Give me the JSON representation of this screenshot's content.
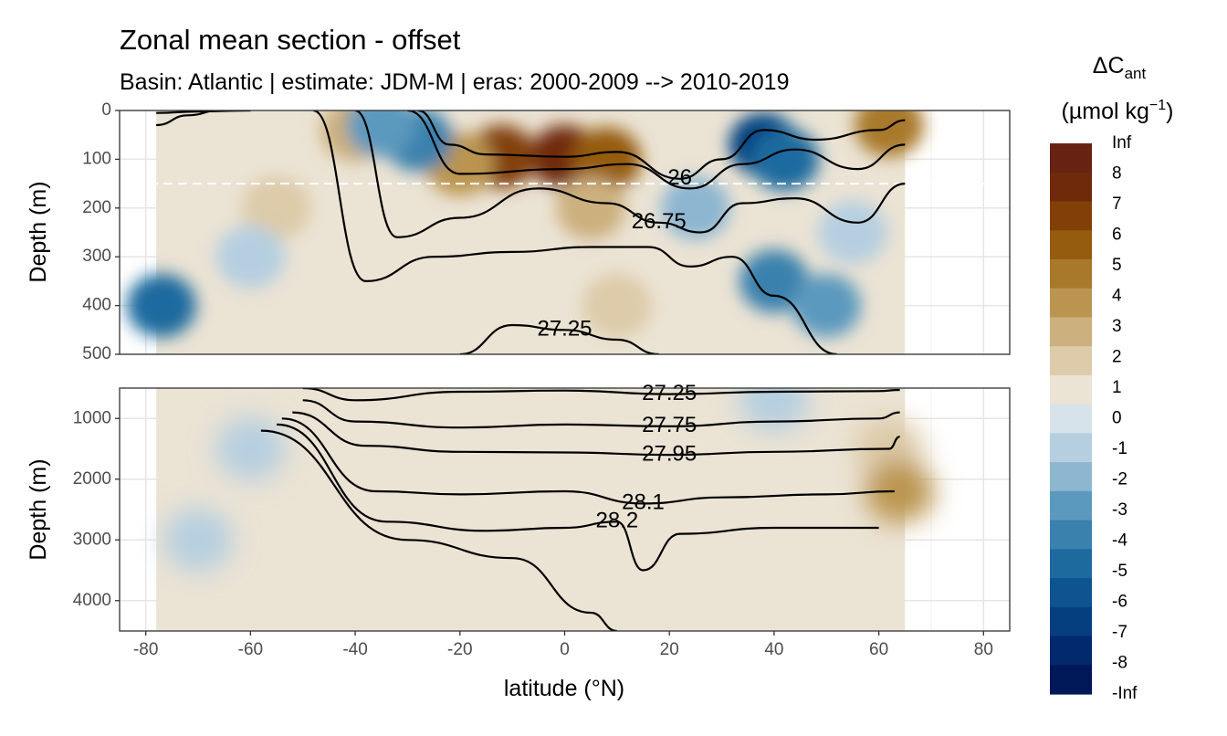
{
  "chart_data": {
    "type": "heatmap",
    "title": "Zonal mean section - offset",
    "subtitle": "Basin: Atlantic | estimate: JDM-M | eras: 2000-2009 --> 2010-2019",
    "xlabel": "latitude (°N)",
    "x_ticks": [
      "-80",
      "-60",
      "-40",
      "-20",
      "0",
      "20",
      "40",
      "60",
      "80"
    ],
    "x_range": [
      -85,
      85
    ],
    "data_lat_range": [
      -78,
      65
    ],
    "grid": true,
    "facets": [
      {
        "ylabel": "Depth (m)",
        "y_range": [
          0,
          500
        ],
        "y_ticks": [
          "0",
          "100",
          "200",
          "300",
          "400",
          "500"
        ],
        "reference_line_depth": 150,
        "blobs": [
          {
            "lat": 0,
            "depth": 95,
            "value": 8
          },
          {
            "lat": -12,
            "depth": 95,
            "value": 7
          },
          {
            "lat": 8,
            "depth": 100,
            "value": 6
          },
          {
            "lat": -20,
            "depth": 110,
            "value": 4
          },
          {
            "lat": 5,
            "depth": 200,
            "value": 3
          },
          {
            "lat": -40,
            "depth": 40,
            "value": 3
          },
          {
            "lat": 62,
            "depth": 30,
            "value": 5
          },
          {
            "lat": -28,
            "depth": 60,
            "value": -4
          },
          {
            "lat": -35,
            "depth": 30,
            "value": -3
          },
          {
            "lat": 38,
            "depth": 70,
            "value": -7
          },
          {
            "lat": 42,
            "depth": 100,
            "value": -5
          },
          {
            "lat": 40,
            "depth": 350,
            "value": -4
          },
          {
            "lat": 50,
            "depth": 400,
            "value": -3
          },
          {
            "lat": -77,
            "depth": 400,
            "value": -5
          },
          {
            "lat": 25,
            "depth": 200,
            "value": -2
          },
          {
            "lat": -55,
            "depth": 200,
            "value": 2
          },
          {
            "lat": 10,
            "depth": 400,
            "value": 2
          },
          {
            "lat": -60,
            "depth": 300,
            "value": -1
          },
          {
            "lat": 55,
            "depth": 250,
            "value": -1
          }
        ],
        "contours": [
          {
            "label": "",
            "depth_at": [
              [
                -78,
                5
              ],
              [
                -70,
                2
              ],
              [
                -60,
                0
              ]
            ]
          },
          {
            "label": "",
            "depth_at": [
              [
                -78,
                30
              ],
              [
                -72,
                10
              ],
              [
                -66,
                0
              ]
            ]
          },
          {
            "label": "26",
            "depth_at": [
              [
                -28,
                0
              ],
              [
                -22,
                70
              ],
              [
                -15,
                90
              ],
              [
                0,
                95
              ],
              [
                10,
                85
              ],
              [
                22,
                140
              ],
              [
                30,
                100
              ],
              [
                38,
                40
              ],
              [
                48,
                60
              ],
              [
                60,
                40
              ],
              [
                65,
                20
              ]
            ]
          },
          {
            "label": "",
            "depth_at": [
              [
                -30,
                0
              ],
              [
                -20,
                130
              ],
              [
                0,
                120
              ],
              [
                12,
                110
              ],
              [
                24,
                160
              ],
              [
                34,
                110
              ],
              [
                44,
                80
              ],
              [
                56,
                120
              ],
              [
                65,
                70
              ]
            ]
          },
          {
            "label": "26.75",
            "depth_at": [
              [
                -40,
                0
              ],
              [
                -32,
                260
              ],
              [
                -20,
                220
              ],
              [
                -5,
                160
              ],
              [
                8,
                190
              ],
              [
                18,
                230
              ],
              [
                26,
                250
              ],
              [
                34,
                190
              ],
              [
                44,
                180
              ],
              [
                56,
                230
              ],
              [
                65,
                150
              ]
            ]
          },
          {
            "label": "",
            "depth_at": [
              [
                -48,
                0
              ],
              [
                -38,
                350
              ],
              [
                -25,
                300
              ],
              [
                -10,
                290
              ],
              [
                5,
                280
              ],
              [
                16,
                280
              ],
              [
                24,
                320
              ],
              [
                32,
                300
              ],
              [
                40,
                380
              ],
              [
                52,
                500
              ]
            ]
          },
          {
            "label": "27.25",
            "depth_at": [
              [
                -20,
                500
              ],
              [
                -10,
                440
              ],
              [
                0,
                450
              ],
              [
                10,
                470
              ],
              [
                18,
                500
              ]
            ]
          }
        ]
      },
      {
        "ylabel": "Depth (m)",
        "y_range": [
          500,
          4500
        ],
        "y_ticks": [
          "1000",
          "2000",
          "3000",
          "4000"
        ],
        "blobs": [
          {
            "lat": -10,
            "depth": 1600,
            "value": 1
          },
          {
            "lat": 10,
            "depth": 900,
            "value": 1
          },
          {
            "lat": 40,
            "depth": 700,
            "value": -1
          },
          {
            "lat": -60,
            "depth": 1500,
            "value": -1
          },
          {
            "lat": -70,
            "depth": 3000,
            "value": -1
          },
          {
            "lat": 62,
            "depth": 1500,
            "value": 2
          },
          {
            "lat": 64,
            "depth": 2200,
            "value": 4
          }
        ],
        "contours": [
          {
            "label": "27.25",
            "depth_at": [
              [
                -50,
                500
              ],
              [
                -40,
                700
              ],
              [
                -20,
                560
              ],
              [
                0,
                540
              ],
              [
                20,
                600
              ],
              [
                40,
                560
              ],
              [
                60,
                550
              ],
              [
                64,
                530
              ]
            ]
          },
          {
            "label": "27.75",
            "depth_at": [
              [
                -50,
                700
              ],
              [
                -40,
                1050
              ],
              [
                -20,
                1150
              ],
              [
                0,
                1100
              ],
              [
                20,
                1130
              ],
              [
                40,
                1050
              ],
              [
                60,
                1000
              ],
              [
                64,
                900
              ]
            ]
          },
          {
            "label": "27.95",
            "depth_at": [
              [
                -52,
                900
              ],
              [
                -38,
                1450
              ],
              [
                -20,
                1550
              ],
              [
                0,
                1560
              ],
              [
                20,
                1600
              ],
              [
                40,
                1550
              ],
              [
                62,
                1500
              ],
              [
                64,
                1300
              ]
            ]
          },
          {
            "label": "28.1",
            "depth_at": [
              [
                -54,
                1000
              ],
              [
                -36,
                2200
              ],
              [
                -20,
                2250
              ],
              [
                0,
                2200
              ],
              [
                15,
                2400
              ],
              [
                30,
                2300
              ],
              [
                50,
                2250
              ],
              [
                63,
                2200
              ]
            ]
          },
          {
            "label": "28.2",
            "depth_at": [
              [
                -55,
                1100
              ],
              [
                -34,
                2700
              ],
              [
                -15,
                2850
              ],
              [
                0,
                2800
              ],
              [
                10,
                2700
              ],
              [
                15,
                3500
              ],
              [
                22,
                2900
              ],
              [
                40,
                2800
              ],
              [
                60,
                2800
              ]
            ]
          },
          {
            "label": "",
            "depth_at": [
              [
                -58,
                1200
              ],
              [
                -30,
                3000
              ],
              [
                -10,
                3300
              ],
              [
                5,
                4200
              ],
              [
                10,
                4500
              ]
            ]
          }
        ]
      }
    ],
    "legend": {
      "title": "ΔC",
      "title_sub": "ant",
      "unit": "(µmol kg",
      "unit_sup": "−1",
      "unit_close": ")",
      "labels": [
        "Inf",
        "8",
        "7",
        "6",
        "5",
        "4",
        "3",
        "2",
        "1",
        "0",
        "-1",
        "-2",
        "-3",
        "-4",
        "-5",
        "-6",
        "-7",
        "-8",
        "-Inf"
      ],
      "colors": [
        "#672212",
        "#6f2a0b",
        "#823f07",
        "#955b0f",
        "#a8792a",
        "#bb9550",
        "#ccb07e",
        "#ddcba9",
        "#ebe3d4",
        "#d7e3ea",
        "#b6cfe0",
        "#8db6d1",
        "#5c99be",
        "#3a81ad",
        "#1d6a9f",
        "#0d5491",
        "#063f80",
        "#02296b",
        "#011858"
      ]
    }
  }
}
